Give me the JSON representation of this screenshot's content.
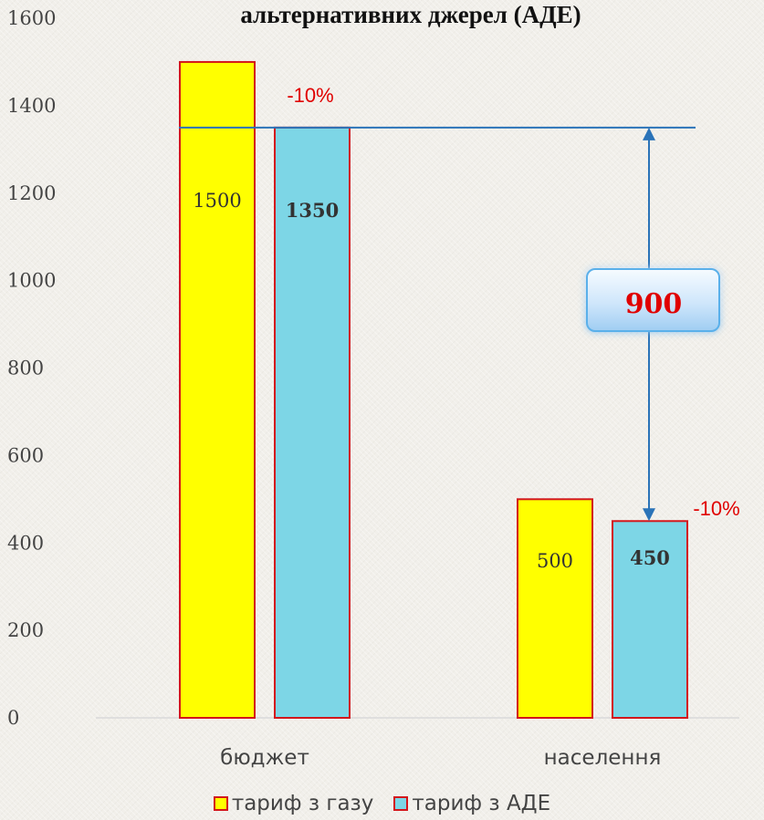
{
  "chart_data": {
    "type": "bar",
    "title": "альтернативних джерел (АДЕ)",
    "categories": [
      "бюджет",
      "населення"
    ],
    "series": [
      {
        "name": "тариф з газу",
        "values": [
          1500,
          500
        ],
        "labels": [
          "1500",
          "500"
        ],
        "color": "#ffff00"
      },
      {
        "name": "тариф з АДЕ",
        "values": [
          1350,
          450
        ],
        "labels": [
          "1350",
          "450"
        ],
        "color": "#7dd6e6"
      }
    ],
    "ylim": [
      0,
      1600
    ],
    "yticks": [
      "0",
      "200",
      "400",
      "600",
      "800",
      "1000",
      "1200",
      "1400",
      "1600"
    ],
    "bar_border_color": "#d3161b",
    "annotations": {
      "percent_labels": [
        "-10%",
        "-10%"
      ],
      "difference_label": "900",
      "reference_line_value": 1350,
      "arrow_to_value": 450,
      "line_color": "#2a73b8",
      "text_color": "#e00000"
    },
    "legend_position": "bottom",
    "grid": false
  }
}
